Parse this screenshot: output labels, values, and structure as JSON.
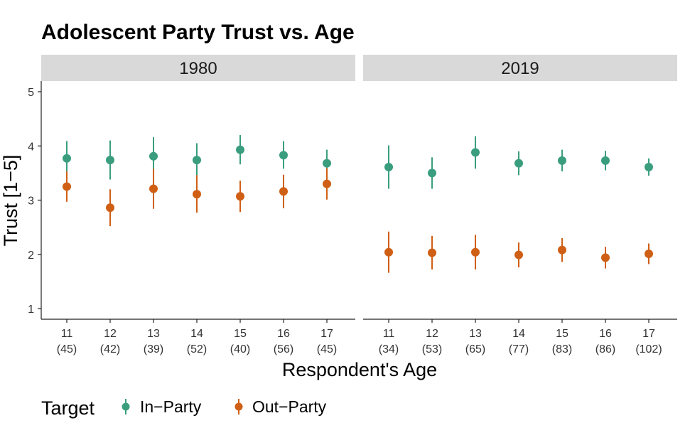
{
  "chart_data": {
    "type": "scatter",
    "title": "Adolescent Party Trust vs. Age",
    "xlabel": "Respondent's Age",
    "ylabel": "Trust [1−5]",
    "ylim": [
      1,
      5
    ],
    "yticks": [
      "1",
      "2",
      "3",
      "4",
      "5"
    ],
    "grid": false,
    "legend": {
      "title": "Target",
      "position": "bottom-left"
    },
    "panels": [
      {
        "label": "1980",
        "ages": [
          "11",
          "12",
          "13",
          "14",
          "15",
          "16",
          "17"
        ],
        "n": [
          "(45)",
          "(42)",
          "(39)",
          "(52)",
          "(40)",
          "(56)",
          "(45)"
        ],
        "series": [
          {
            "name": "In−Party",
            "color": "#3a9e7e",
            "values": [
              3.77,
              3.74,
              3.81,
              3.74,
              3.93,
              3.83,
              3.68
            ],
            "lower": [
              3.46,
              3.38,
              3.46,
              3.45,
              3.66,
              3.58,
              3.44
            ],
            "upper": [
              4.09,
              4.1,
              4.16,
              4.05,
              4.2,
              4.09,
              3.93
            ]
          },
          {
            "name": "Out−Party",
            "color": "#cf5f15",
            "values": [
              3.25,
              2.86,
              3.21,
              3.11,
              3.07,
              3.16,
              3.3
            ],
            "lower": [
              2.97,
              2.52,
              2.84,
              2.77,
              2.78,
              2.85,
              3.01
            ],
            "upper": [
              3.53,
              3.2,
              3.58,
              3.46,
              3.36,
              3.47,
              3.59
            ]
          }
        ]
      },
      {
        "label": "2019",
        "ages": [
          "11",
          "12",
          "13",
          "14",
          "15",
          "16",
          "17"
        ],
        "n": [
          "(34)",
          "(53)",
          "(65)",
          "(77)",
          "(83)",
          "(86)",
          "(102)"
        ],
        "series": [
          {
            "name": "In−Party",
            "color": "#3a9e7e",
            "values": [
              3.61,
              3.5,
              3.88,
              3.68,
              3.73,
              3.73,
              3.61
            ],
            "lower": [
              3.21,
              3.21,
              3.58,
              3.46,
              3.53,
              3.55,
              3.45
            ],
            "upper": [
              4.01,
              3.79,
              4.18,
              3.9,
              3.93,
              3.91,
              3.77
            ]
          },
          {
            "name": "Out−Party",
            "color": "#cf5f15",
            "values": [
              2.04,
              2.03,
              2.04,
              1.99,
              2.08,
              1.94,
              2.01
            ],
            "lower": [
              1.66,
              1.72,
              1.72,
              1.76,
              1.86,
              1.74,
              1.82
            ],
            "upper": [
              2.42,
              2.34,
              2.36,
              2.22,
              2.3,
              2.14,
              2.2
            ]
          }
        ]
      }
    ]
  }
}
